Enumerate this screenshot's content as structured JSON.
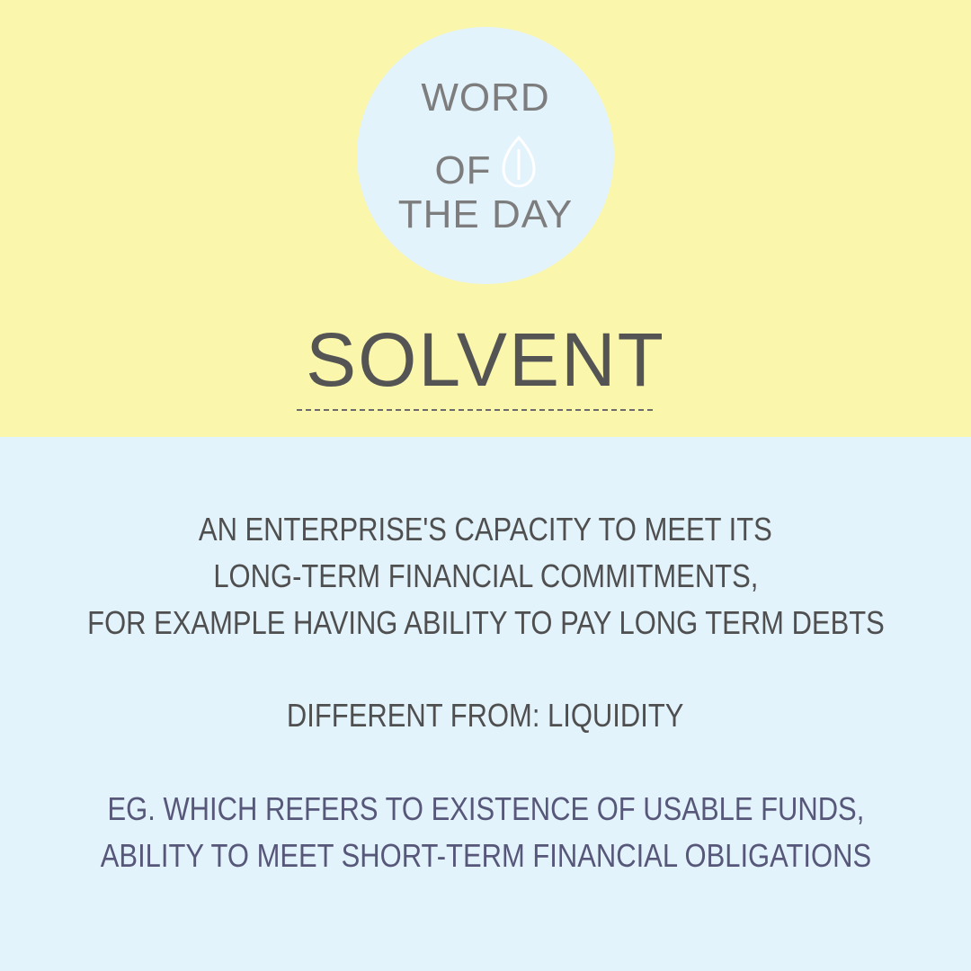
{
  "colors": {
    "top_background": "#faf6ac",
    "bottom_background": "#e3f3fc",
    "badge_background": "#e3f3fc",
    "badge_text": "#7d7d7d",
    "title_text": "#545454",
    "body_text": "#4f4f4f",
    "example_text": "#57577a",
    "icon_stroke": "#ffffff"
  },
  "badge": {
    "line1": "WORD",
    "line2": "OF",
    "line3": "THE DAY",
    "icon": "leaf-icon"
  },
  "word": "SOLVENT",
  "definition": {
    "lines": [
      "AN ENTERPRISE'S CAPACITY TO MEET ITS",
      "LONG-TERM FINANCIAL COMMITMENTS,",
      "FOR EXAMPLE HAVING ABILITY TO PAY LONG TERM DEBTS"
    ]
  },
  "different_from": "DIFFERENT FROM: LIQUIDITY",
  "example": {
    "lines": [
      "EG. WHICH REFERS TO EXISTENCE OF USABLE FUNDS,",
      "ABILITY TO MEET SHORT-TERM FINANCIAL OBLIGATIONS"
    ]
  }
}
